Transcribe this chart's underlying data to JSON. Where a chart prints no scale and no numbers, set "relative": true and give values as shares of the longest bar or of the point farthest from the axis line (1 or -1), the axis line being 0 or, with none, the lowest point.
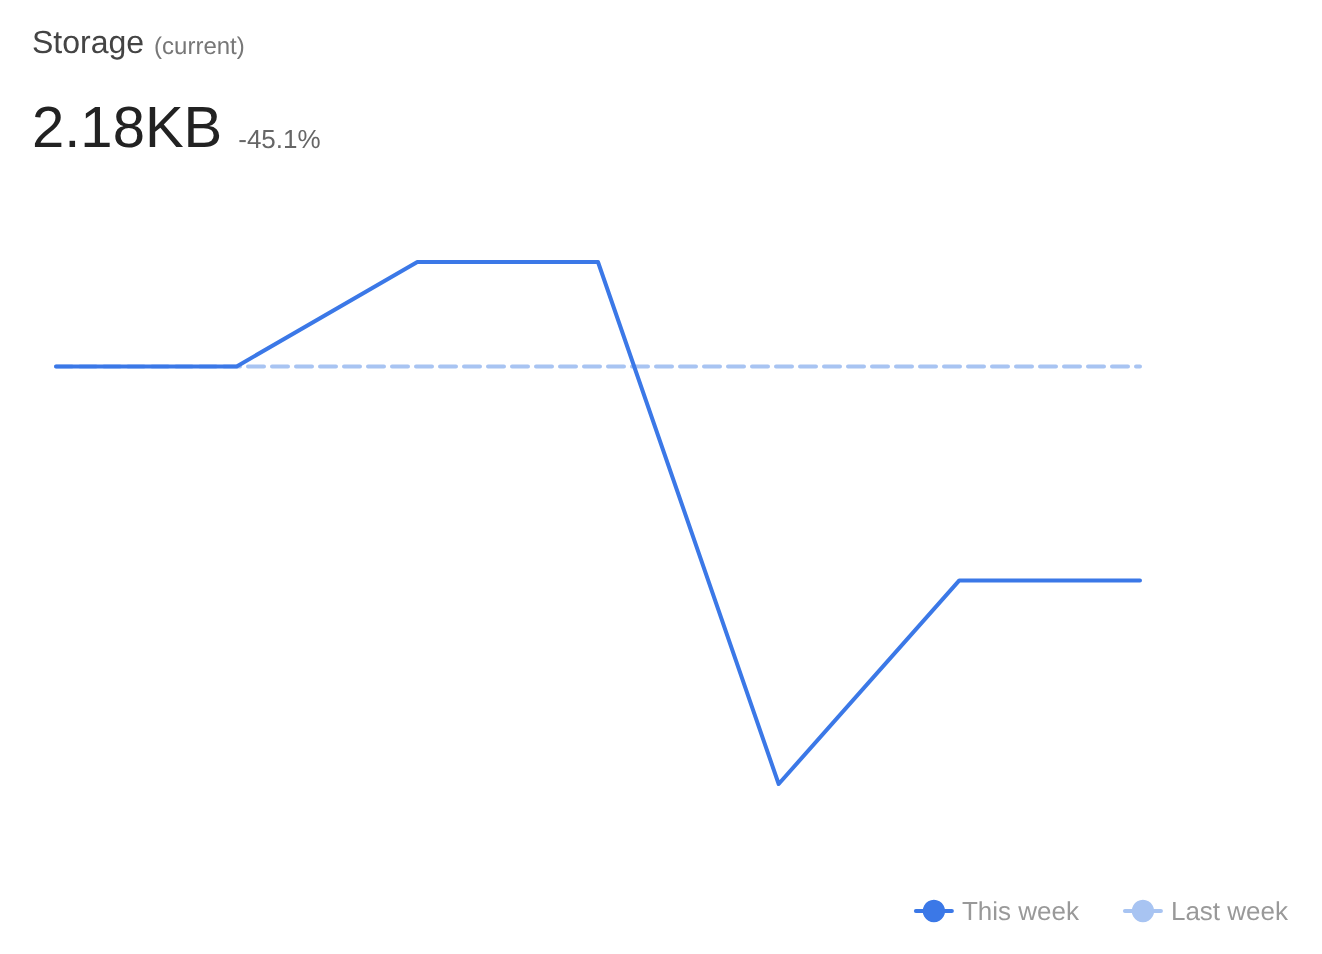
{
  "chart_data": {
    "type": "line",
    "title": "Storage",
    "subtitle": "(current)",
    "annotations": [
      "2.18KB",
      "-45.1%"
    ],
    "relative": true,
    "categories": [
      null,
      null,
      null,
      null,
      null,
      null,
      null
    ],
    "series": [
      {
        "name": "This week",
        "color": "#3b78e7",
        "values": [
          0.8,
          0.8,
          1,
          1,
          0,
          0.39,
          0.39
        ]
      },
      {
        "name": "Last week",
        "color": "#a8c4f2",
        "line_style": "dashed",
        "values": [
          0.8,
          0.8,
          0.8,
          0.8,
          0.8,
          0.8,
          0.8
        ]
      }
    ],
    "marker": "none",
    "grid": false,
    "legend": "bottom right"
  }
}
